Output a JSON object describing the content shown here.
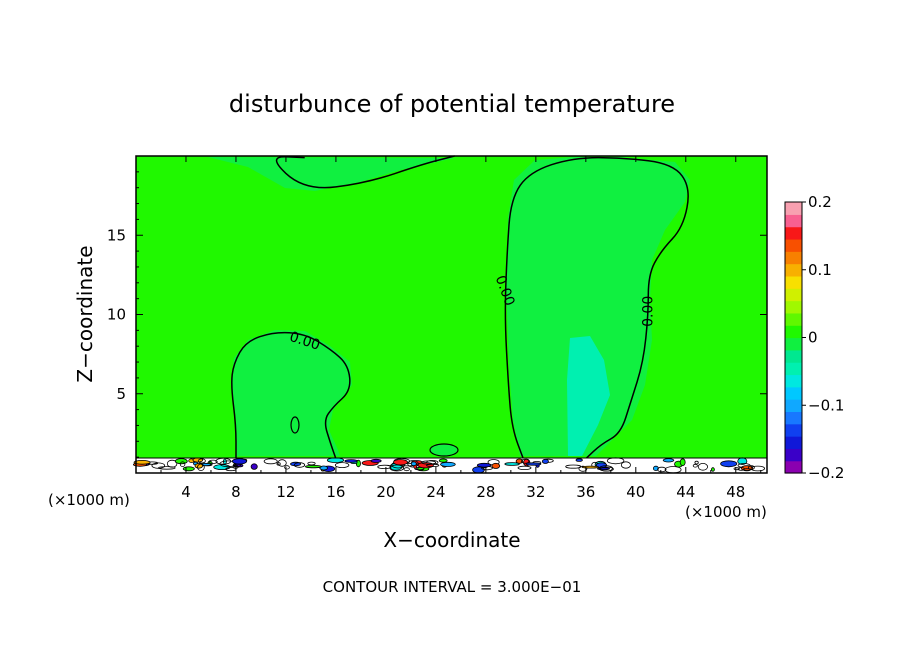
{
  "chart_data": {
    "type": "heatmap",
    "title": "disturbunce of potential temperature",
    "xlabel": "X−coordinate",
    "ylabel": "Z−coordinate",
    "x_unit_left": "(×1000 m)",
    "x_unit_right": "(×1000 m)",
    "xlim": [
      0,
      50.5
    ],
    "ylim": [
      0,
      20
    ],
    "x_ticks": [
      4,
      8,
      12,
      16,
      20,
      24,
      28,
      32,
      36,
      40,
      44,
      48
    ],
    "y_ticks": [
      5,
      10,
      15
    ],
    "x_tick_labels": [
      "4",
      "8",
      "12",
      "16",
      "20",
      "24",
      "28",
      "32",
      "36",
      "40",
      "44",
      "48"
    ],
    "y_tick_labels": [
      "5",
      "10",
      "15"
    ],
    "background_level": 0,
    "contour_labels": [
      {
        "text": "0.00",
        "x": 13.5,
        "y": 8.3,
        "angle": 18
      },
      {
        "text": "0.00",
        "x": 29.5,
        "y": 11.5,
        "angle": 70
      },
      {
        "text": "0.00",
        "x": 41.0,
        "y": 10.2,
        "angle": -90
      }
    ],
    "contour_lines": [
      {
        "name": "top",
        "points": [
          [
            13.5,
            19.9
          ],
          [
            10.5,
            20
          ],
          [
            13.5,
            17.8
          ],
          [
            18.5,
            18.3
          ],
          [
            23,
            19.5
          ],
          [
            25.5,
            20
          ]
        ]
      },
      {
        "name": "left-plume",
        "points": [
          [
            8,
            0.9
          ],
          [
            8,
            3
          ],
          [
            7.6,
            5.5
          ],
          [
            7.8,
            6.9
          ],
          [
            8.8,
            8.3
          ],
          [
            11,
            8.9
          ],
          [
            13.5,
            8.8
          ],
          [
            15.6,
            7.8
          ],
          [
            17,
            6.8
          ],
          [
            17.2,
            5.2
          ],
          [
            15.8,
            4.2
          ],
          [
            15,
            3.3
          ],
          [
            15.6,
            1.8
          ],
          [
            16,
            0.9
          ]
        ]
      },
      {
        "name": "right-plume",
        "points": [
          [
            31,
            0.9
          ],
          [
            30.1,
            2.8
          ],
          [
            29.8,
            5.5
          ],
          [
            29.5,
            10
          ],
          [
            29.7,
            14
          ],
          [
            30,
            17.3
          ],
          [
            31.5,
            19
          ],
          [
            35,
            19.9
          ],
          [
            39,
            19.9
          ],
          [
            43,
            19.5
          ],
          [
            44.4,
            18
          ],
          [
            43.8,
            15.5
          ],
          [
            42,
            14
          ],
          [
            41,
            12.5
          ],
          [
            41,
            10
          ],
          [
            40.6,
            7
          ],
          [
            39.6,
            4.5
          ],
          [
            38.8,
            2.5
          ],
          [
            37.2,
            1.8
          ],
          [
            36,
            0.9
          ]
        ]
      }
    ],
    "regions": [
      {
        "name": "plume-left",
        "level": -0.03
      },
      {
        "name": "plume-right",
        "level": -0.03
      },
      {
        "name": "plume-right-core",
        "level": -0.06
      },
      {
        "name": "top-anomaly",
        "level": -0.03
      }
    ],
    "colorbar": {
      "levels": [
        -0.2,
        -0.18,
        -0.16,
        -0.14,
        -0.12,
        -0.1,
        -0.08,
        -0.06,
        -0.04,
        -0.02,
        0,
        0.02,
        0.04,
        0.06,
        0.08,
        0.1,
        0.12,
        0.14,
        0.16,
        0.18,
        0.2
      ],
      "colors": [
        "#8b00b0",
        "#3a00c8",
        "#1018d8",
        "#1040f0",
        "#1878ff",
        "#10a8ff",
        "#00c8ff",
        "#00e8e0",
        "#00f0b0",
        "#00e890",
        "#10f040",
        "#20f800",
        "#60f800",
        "#a0f800",
        "#d0f000",
        "#f8e000",
        "#f8b000",
        "#f88000",
        "#f85000",
        "#f81818",
        "#f86090",
        "#f8a0b0"
      ],
      "tick_values": [
        0.2,
        0.1,
        0,
        -0.1,
        -0.2
      ],
      "tick_labels": [
        "0.2",
        "0.1",
        "0",
        "−0.1",
        "−0.2"
      ]
    }
  },
  "footer": {
    "contour_interval": "CONTOUR INTERVAL = 3.000E−01"
  }
}
